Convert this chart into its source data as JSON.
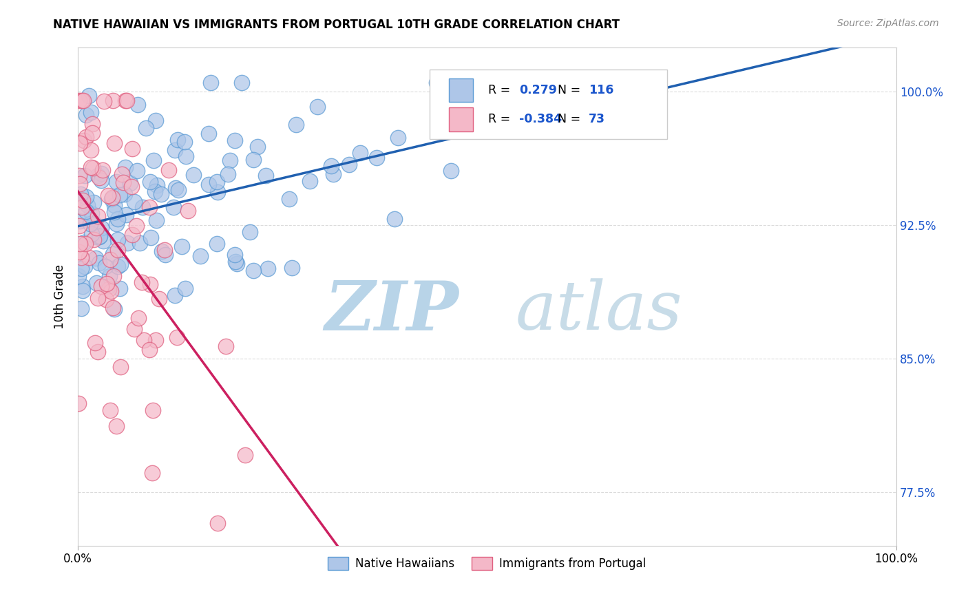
{
  "title": "NATIVE HAWAIIAN VS IMMIGRANTS FROM PORTUGAL 10TH GRADE CORRELATION CHART",
  "source": "Source: ZipAtlas.com",
  "ylabel": "10th Grade",
  "y_ticks": [
    0.775,
    0.85,
    0.925,
    1.0
  ],
  "y_tick_labels": [
    "77.5%",
    "85.0%",
    "92.5%",
    "100.0%"
  ],
  "legend_r1_val": "0.279",
  "legend_n1_val": "116",
  "legend_r2_val": "-0.384",
  "legend_n2_val": "73",
  "blue_color": "#aec6e8",
  "blue_edge": "#5b9bd5",
  "pink_color": "#f4b8c8",
  "pink_edge": "#e06080",
  "trend_blue": "#2060b0",
  "trend_pink": "#cc2060",
  "trend_dashed_color": "#d8a0b0",
  "value_color": "#1a55cc",
  "watermark_zip": "ZIP",
  "watermark_atlas": "atlas",
  "watermark_color_zip": "#b8d4e8",
  "watermark_color_atlas": "#c8dce8",
  "legend_label1": "Native Hawaiians",
  "legend_label2": "Immigrants from Portugal",
  "xlim": [
    0.0,
    1.0
  ],
  "ylim": [
    0.745,
    1.025
  ]
}
